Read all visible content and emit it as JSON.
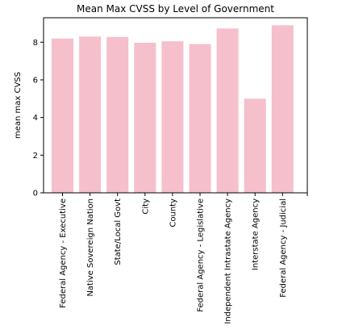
{
  "chart_data": {
    "type": "bar",
    "title": "Mean Max CVSS by Level of Government",
    "xlabel": "",
    "ylabel": "mean max CVSS",
    "categories": [
      "Federal Agency - Executive",
      "Native Sovereign Nation",
      "State/Local Govt",
      "City",
      "County",
      "Federal Agency - Legislative",
      "Independent Intrastate Agency",
      "Interstate Agency",
      "Federal Agency - Judicial"
    ],
    "values": [
      8.2,
      8.3,
      8.28,
      7.97,
      8.05,
      7.9,
      8.73,
      5.0,
      8.9
    ],
    "ylim": [
      0,
      9.3
    ],
    "yticks": [
      "0",
      "2",
      "4",
      "6",
      "8"
    ],
    "bar_color": "#f5bfcb",
    "grid": false,
    "legend": "none"
  }
}
